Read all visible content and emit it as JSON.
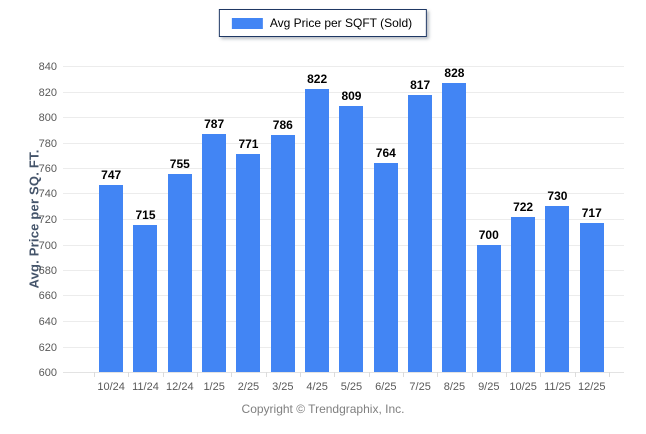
{
  "legend": {
    "label": "Avg Price per SQFT (Sold)"
  },
  "footer": {
    "copyright": "Copyright © Trendgraphix, Inc."
  },
  "colors": {
    "bar": "#4285f4",
    "legend_border": "#1f3864",
    "gridline": "#ececec",
    "axis_text": "#595959",
    "axis_title": "#44546a",
    "value_label": "#000000",
    "footer_text": "#808080"
  },
  "chart_data": {
    "type": "bar",
    "title": "",
    "categories": [
      "10/24",
      "11/24",
      "12/24",
      "1/25",
      "2/25",
      "3/25",
      "4/25",
      "5/25",
      "6/25",
      "7/25",
      "8/25",
      "9/25",
      "10/25",
      "11/25",
      "12/25"
    ],
    "values": [
      747,
      715,
      755,
      787,
      771,
      786,
      822,
      809,
      764,
      817,
      828,
      700,
      722,
      730,
      717
    ],
    "series_name": "Avg Price per SQFT (Sold)",
    "xlabel": "",
    "ylabel": "Avg. Price per SQ. FT.",
    "ylim": [
      600,
      840
    ],
    "ytick_step": 20,
    "ytick_labels": [
      "840",
      "820",
      "800",
      "780",
      "760",
      "740",
      "720",
      "700",
      "680",
      "660",
      "640",
      "620",
      "600"
    ],
    "grid": true,
    "legend_position": "top-center",
    "value_labels": true
  }
}
